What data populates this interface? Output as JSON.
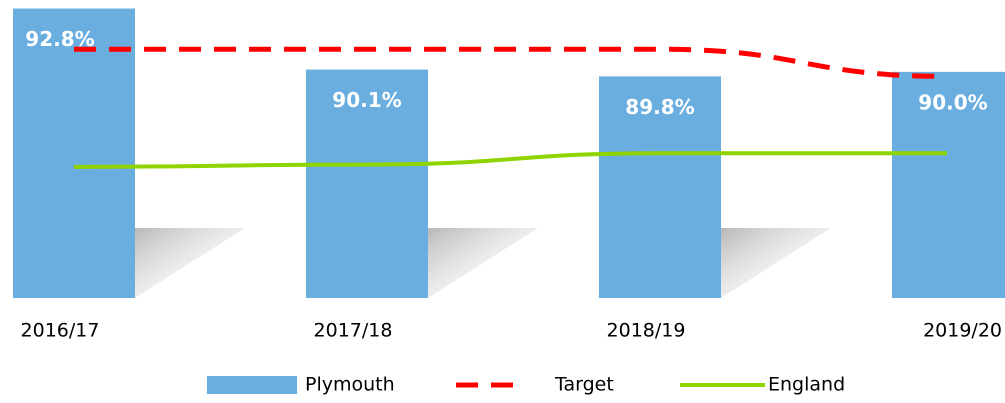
{
  "chart_data": {
    "type": "bar",
    "categories": [
      "2016/17",
      "2017/18",
      "2018/19",
      "2019/20"
    ],
    "ylim": [
      80,
      93
    ],
    "series": [
      {
        "name": "Plymouth",
        "type": "bar",
        "color": "#6aaee0",
        "values": [
          92.8,
          90.1,
          89.8,
          90.0
        ],
        "value_labels": [
          "92.8%",
          "90.1%",
          "89.8%",
          "90.0%"
        ]
      },
      {
        "name": "Target",
        "type": "line",
        "dashed": true,
        "color": "#ff0000",
        "values": [
          91.0,
          91.0,
          91.0,
          89.8
        ]
      },
      {
        "name": "England",
        "type": "line",
        "dashed": false,
        "color": "#8fd400",
        "values": [
          85.8,
          85.9,
          86.4,
          86.4
        ]
      }
    ],
    "legend": "bottom"
  }
}
